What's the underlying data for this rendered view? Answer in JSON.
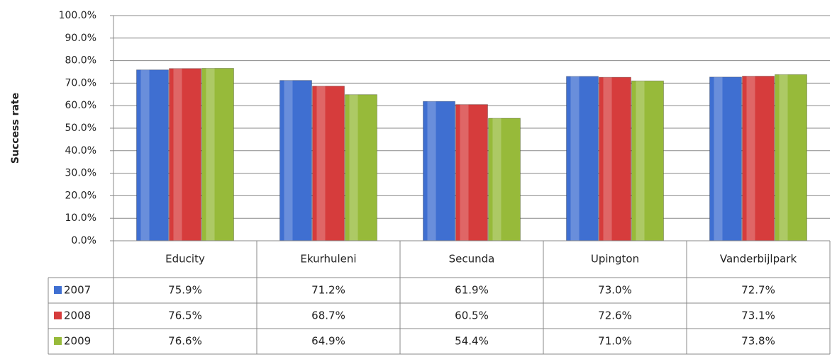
{
  "chart_data": {
    "type": "bar",
    "y_label": "Success rate",
    "categories": [
      "Educity",
      "Ekurhuleni",
      "Secunda",
      "Upington",
      "Vanderbijlpark"
    ],
    "series": [
      {
        "name": "2007",
        "color": "#3f6fd1",
        "values": [
          75.9,
          71.2,
          61.9,
          73.0,
          72.7
        ],
        "value_labels": [
          "75.9%",
          "71.2%",
          "61.9%",
          "73.0%",
          "72.7%"
        ]
      },
      {
        "name": "2008",
        "color": "#d63c3c",
        "values": [
          76.5,
          68.7,
          60.5,
          72.6,
          73.1
        ],
        "value_labels": [
          "76.5%",
          "68.7%",
          "60.5%",
          "72.6%",
          "73.1%"
        ]
      },
      {
        "name": "2009",
        "color": "#97ba3a",
        "values": [
          76.6,
          64.9,
          54.4,
          71.0,
          73.8
        ],
        "value_labels": [
          "76.6%",
          "64.9%",
          "54.4%",
          "71.0%",
          "73.8%"
        ]
      }
    ],
    "ylim": [
      0,
      100
    ],
    "yticks": [
      {
        "value": 0,
        "label": "0.0%"
      },
      {
        "value": 10,
        "label": "10.0%"
      },
      {
        "value": 20,
        "label": "20.0%"
      },
      {
        "value": 30,
        "label": "30.0%"
      },
      {
        "value": 40,
        "label": "40.0%"
      },
      {
        "value": 50,
        "label": "50.0%"
      },
      {
        "value": 60,
        "label": "60.0%"
      },
      {
        "value": 70,
        "label": "70.0%"
      },
      {
        "value": 80,
        "label": "80.0%"
      },
      {
        "value": 90,
        "label": "90.0%"
      },
      {
        "value": 100,
        "label": "100.0%"
      }
    ],
    "grid": true
  }
}
